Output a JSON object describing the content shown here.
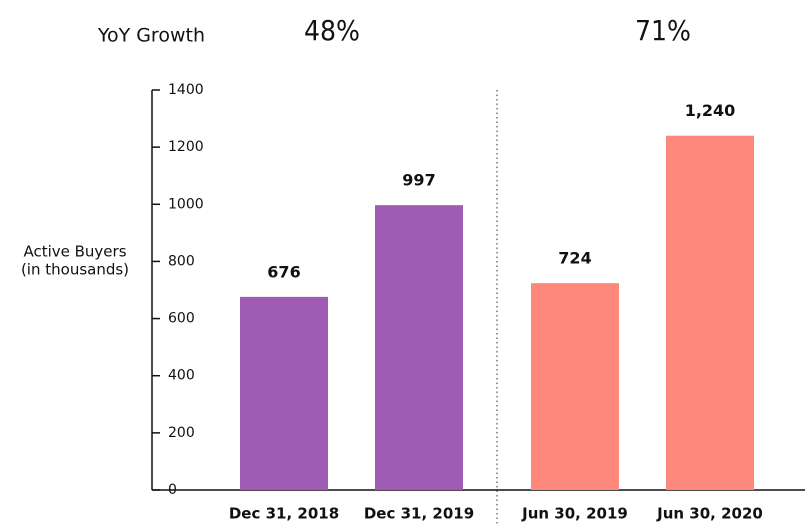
{
  "chart_data": {
    "type": "bar",
    "annotations": [
      "YoY Growth",
      "48%",
      "71%"
    ],
    "ylabel": [
      "Active Buyers",
      "(in thousands)"
    ],
    "categories": [
      "Dec 31, 2018",
      "Dec 31, 2019",
      "Jun 30, 2019",
      "Jun 30, 2020"
    ],
    "values": [
      676,
      997,
      724,
      1240
    ],
    "value_labels": [
      "676",
      "997",
      "724",
      "1,240"
    ],
    "colors": [
      "#a05bb4",
      "#a05bb4",
      "#ff887c",
      "#ff887c"
    ],
    "ylim": [
      0,
      1400
    ],
    "yticks": [
      0,
      200,
      400,
      600,
      800,
      1000,
      1200,
      1400
    ]
  }
}
